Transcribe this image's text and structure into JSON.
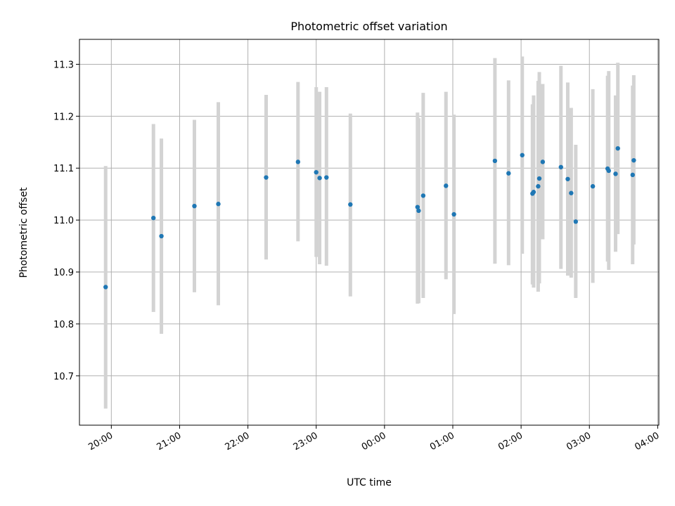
{
  "chart_data": {
    "type": "scatter",
    "title": "Photometric offset variation",
    "xlabel": "UTC time",
    "ylabel": "Photometric offset",
    "x_ticks": [
      "20:00",
      "21:00",
      "22:00",
      "23:00",
      "00:00",
      "01:00",
      "02:00",
      "03:00",
      "04:00"
    ],
    "y_ticks": [
      "10.7",
      "10.8",
      "10.9",
      "11.0",
      "11.1",
      "11.2",
      "11.3"
    ],
    "xlim": [
      "19:32",
      "04:01"
    ],
    "ylim": [
      10.605,
      11.348
    ],
    "grid": true,
    "point_color": "#1f77b4",
    "errorbar_color": "#d3d3d3",
    "points": [
      {
        "x": "19:55",
        "y": 10.871,
        "low": 10.637,
        "high": 11.104
      },
      {
        "x": "20:37",
        "y": 11.004,
        "low": 10.823,
        "high": 11.185
      },
      {
        "x": "20:44",
        "y": 10.969,
        "low": 10.781,
        "high": 11.157
      },
      {
        "x": "21:13",
        "y": 11.027,
        "low": 10.861,
        "high": 11.193
      },
      {
        "x": "21:34",
        "y": 11.031,
        "low": 10.836,
        "high": 11.227
      },
      {
        "x": "22:16",
        "y": 11.082,
        "low": 10.924,
        "high": 11.241
      },
      {
        "x": "22:44",
        "y": 11.112,
        "low": 10.959,
        "high": 11.266
      },
      {
        "x": "23:00",
        "y": 11.092,
        "low": 10.929,
        "high": 11.256
      },
      {
        "x": "23:03",
        "y": 11.081,
        "low": 10.915,
        "high": 11.247
      },
      {
        "x": "23:09",
        "y": 11.082,
        "low": 10.912,
        "high": 11.256
      },
      {
        "x": "23:30",
        "y": 11.03,
        "low": 10.853,
        "high": 11.205
      },
      {
        "x": "00:29",
        "y": 11.025,
        "low": 10.839,
        "high": 11.207
      },
      {
        "x": "00:30",
        "y": 11.018,
        "low": 10.84,
        "high": 11.196
      },
      {
        "x": "00:34",
        "y": 11.047,
        "low": 10.85,
        "high": 11.245
      },
      {
        "x": "00:54",
        "y": 11.066,
        "low": 10.886,
        "high": 11.247
      },
      {
        "x": "01:01",
        "y": 11.011,
        "low": 10.819,
        "high": 11.203
      },
      {
        "x": "01:37",
        "y": 11.114,
        "low": 10.916,
        "high": 11.312
      },
      {
        "x": "01:49",
        "y": 11.09,
        "low": 10.913,
        "high": 11.269
      },
      {
        "x": "02:01",
        "y": 11.125,
        "low": 10.935,
        "high": 11.315
      },
      {
        "x": "02:10",
        "y": 11.051,
        "low": 10.876,
        "high": 11.223
      },
      {
        "x": "02:11",
        "y": 11.054,
        "low": 10.87,
        "high": 11.24
      },
      {
        "x": "02:15",
        "y": 11.065,
        "low": 10.862,
        "high": 11.268
      },
      {
        "x": "02:16",
        "y": 11.08,
        "low": 10.878,
        "high": 11.285
      },
      {
        "x": "02:19",
        "y": 11.112,
        "low": 10.963,
        "high": 11.262
      },
      {
        "x": "02:35",
        "y": 11.102,
        "low": 10.906,
        "high": 11.297
      },
      {
        "x": "02:41",
        "y": 11.079,
        "low": 10.893,
        "high": 11.265
      },
      {
        "x": "02:44",
        "y": 11.052,
        "low": 10.889,
        "high": 11.216
      },
      {
        "x": "02:48",
        "y": 10.997,
        "low": 10.85,
        "high": 11.145
      },
      {
        "x": "03:03",
        "y": 11.065,
        "low": 10.879,
        "high": 11.252
      },
      {
        "x": "03:16",
        "y": 11.099,
        "low": 10.92,
        "high": 11.278
      },
      {
        "x": "03:17",
        "y": 11.095,
        "low": 10.904,
        "high": 11.287
      },
      {
        "x": "03:23",
        "y": 11.089,
        "low": 10.939,
        "high": 11.24
      },
      {
        "x": "03:25",
        "y": 11.138,
        "low": 10.973,
        "high": 11.303
      },
      {
        "x": "03:38",
        "y": 11.087,
        "low": 10.915,
        "high": 11.259
      },
      {
        "x": "03:39",
        "y": 11.115,
        "low": 10.953,
        "high": 11.279
      }
    ]
  }
}
